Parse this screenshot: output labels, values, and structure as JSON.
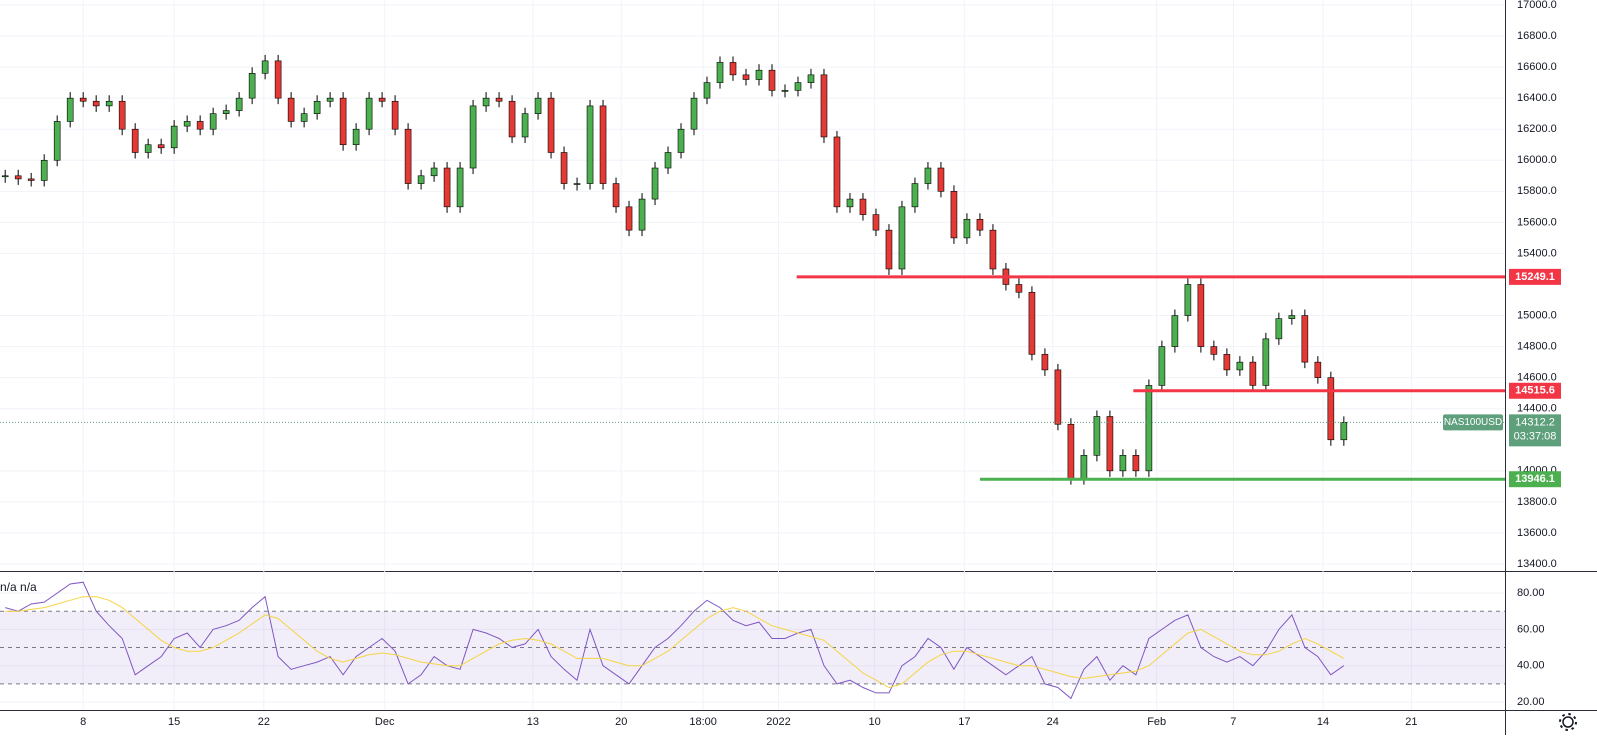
{
  "chart_data": [
    {
      "type": "candlestick",
      "symbol": "NAS100USD",
      "last_price": 14312.2,
      "countdown": "03:37:08",
      "up_color": "#4caf50",
      "down_color": "#e53935",
      "last_color": "#5e9f7c",
      "x": [
        1,
        2,
        3,
        4,
        5,
        6,
        7,
        8,
        9,
        10,
        11,
        12,
        13,
        14,
        15,
        16,
        17,
        18,
        19,
        20,
        21,
        22,
        23,
        24,
        25,
        26,
        27,
        28,
        29,
        30,
        31,
        32,
        33,
        34,
        35,
        36,
        37,
        38,
        39,
        40,
        41,
        42,
        43,
        44,
        45,
        46,
        47,
        48,
        49,
        50,
        51,
        52,
        53,
        54,
        55,
        56,
        57,
        58,
        59,
        60,
        61,
        62,
        63,
        64,
        65,
        66,
        67,
        68,
        69,
        70,
        71,
        72,
        73,
        74,
        75,
        76,
        77,
        78,
        79,
        80,
        81,
        82,
        83,
        84,
        85,
        86,
        87,
        88,
        89,
        90,
        91,
        92,
        93,
        94,
        95,
        96,
        97,
        98,
        99,
        100,
        101,
        102,
        103,
        104
      ],
      "close": [
        15900,
        15880,
        15870,
        16000,
        16250,
        16400,
        16380,
        16350,
        16380,
        16200,
        16050,
        16100,
        16080,
        16220,
        16250,
        16200,
        16300,
        16320,
        16400,
        16560,
        16640,
        16400,
        16250,
        16300,
        16380,
        16400,
        16100,
        16200,
        16400,
        16380,
        16200,
        15850,
        15900,
        15950,
        15700,
        15950,
        16350,
        16400,
        16380,
        16150,
        16300,
        16400,
        16050,
        15850,
        15850,
        16350,
        15850,
        15700,
        15550,
        15750,
        15950,
        16050,
        16200,
        16400,
        16500,
        16630,
        16550,
        16520,
        16580,
        16450,
        16450,
        16500,
        16550,
        16150,
        15700,
        15750,
        15650,
        15550,
        15300,
        15700,
        15850,
        15950,
        15800,
        15500,
        15620,
        15550,
        15300,
        15200,
        15150,
        14750,
        14650,
        14300,
        13950,
        14100,
        14350,
        14000,
        14100,
        14000,
        14550,
        14800,
        15000,
        15200,
        14800,
        14750,
        14650,
        14700,
        14550,
        14850,
        14980,
        15000,
        14700,
        14600,
        14200,
        14312.2
      ],
      "xlim": [
        0.6,
        116.4
      ],
      "xticks": [
        {
          "value": 7,
          "label": "8"
        },
        {
          "value": 14,
          "label": "15"
        },
        {
          "value": 20.9,
          "label": "22"
        },
        {
          "value": 30.2,
          "label": "Dec"
        },
        {
          "value": 41.6,
          "label": "13"
        },
        {
          "value": 48.4,
          "label": "20"
        },
        {
          "value": 54.7,
          "label": "18:00"
        },
        {
          "value": 60.5,
          "label": "2022"
        },
        {
          "value": 67.9,
          "label": "10"
        },
        {
          "value": 74.8,
          "label": "17"
        },
        {
          "value": 81.6,
          "label": "24"
        },
        {
          "value": 89.6,
          "label": "Feb"
        },
        {
          "value": 95.5,
          "label": "7"
        },
        {
          "value": 102.4,
          "label": "14"
        },
        {
          "value": 109.2,
          "label": "21"
        }
      ],
      "ylim": [
        13355,
        17032
      ],
      "yticks": [
        {
          "value": 17000,
          "label": "17000.0"
        },
        {
          "value": 16800,
          "label": "16800.0"
        },
        {
          "value": 16600,
          "label": "16600.0"
        },
        {
          "value": 16400,
          "label": "16400.0"
        },
        {
          "value": 16200,
          "label": "16200.0"
        },
        {
          "value": 16000,
          "label": "16000.0"
        },
        {
          "value": 15800,
          "label": "15800.0"
        },
        {
          "value": 15600,
          "label": "15600.0"
        },
        {
          "value": 15400,
          "label": "15400.0"
        },
        {
          "value": 15000,
          "label": "15000.0"
        },
        {
          "value": 14800,
          "label": "14800.0"
        },
        {
          "value": 14600,
          "label": "14600.0"
        },
        {
          "value": 14400,
          "label": "14400.0"
        },
        {
          "value": 14000,
          "label": "14000.0"
        },
        {
          "value": 13800,
          "label": "13800.0"
        },
        {
          "value": 13600,
          "label": "13600.0"
        },
        {
          "value": 13400,
          "label": "13400.0"
        }
      ],
      "levels": [
        {
          "value": 15249.1,
          "x_start": 61.9,
          "color": "#f23645"
        },
        {
          "value": 14515.6,
          "x_start": 87.8,
          "color": "#f23645"
        },
        {
          "value": 13946.1,
          "x_start": 76.0,
          "color": "#4caf50"
        }
      ]
    },
    {
      "type": "line",
      "legend_text": "n/a n/a",
      "series": [
        {
          "color": "#7e57c2",
          "values": [
            72,
            70,
            74,
            75,
            80,
            85,
            86,
            70,
            62,
            55,
            35,
            40,
            45,
            55,
            58,
            50,
            60,
            62,
            65,
            72,
            78,
            45,
            38,
            40,
            42,
            45,
            35,
            45,
            50,
            55,
            48,
            30,
            35,
            45,
            40,
            38,
            60,
            58,
            55,
            50,
            52,
            60,
            45,
            38,
            32,
            60,
            40,
            35,
            30,
            40,
            50,
            55,
            62,
            70,
            76,
            72,
            65,
            62,
            64,
            55,
            55,
            58,
            60,
            40,
            30,
            32,
            28,
            25,
            25,
            40,
            45,
            55,
            50,
            38,
            50,
            45,
            40,
            35,
            40,
            45,
            30,
            28,
            22,
            38,
            45,
            32,
            40,
            35,
            55,
            60,
            65,
            68,
            50,
            45,
            42,
            45,
            40,
            48,
            60,
            68,
            50,
            45,
            35,
            40
          ]
        },
        {
          "color": "#f5d442",
          "values": [
            70,
            70,
            71,
            72,
            74,
            76,
            78,
            78,
            76,
            72,
            66,
            60,
            54,
            50,
            48,
            48,
            50,
            54,
            58,
            63,
            68,
            66,
            60,
            54,
            48,
            44,
            42,
            44,
            46,
            47,
            46,
            44,
            42,
            41,
            40,
            40,
            44,
            48,
            52,
            54,
            55,
            54,
            52,
            48,
            44,
            44,
            44,
            42,
            40,
            40,
            44,
            48,
            54,
            60,
            66,
            70,
            72,
            70,
            66,
            62,
            60,
            58,
            56,
            54,
            48,
            42,
            36,
            32,
            28,
            30,
            36,
            42,
            46,
            48,
            48,
            46,
            44,
            42,
            40,
            40,
            38,
            36,
            34,
            33,
            34,
            35,
            36,
            37,
            40,
            46,
            52,
            58,
            60,
            56,
            52,
            48,
            46,
            46,
            48,
            52,
            55,
            52,
            48,
            44
          ]
        }
      ],
      "levels": [
        70,
        50,
        30
      ],
      "band_color": "#7e57c2",
      "ylim": [
        15.6,
        91.6
      ],
      "yticks": [
        {
          "value": 80,
          "label": "80.00"
        },
        {
          "value": 60,
          "label": "60.00"
        },
        {
          "value": 40,
          "label": "40.00"
        },
        {
          "value": 20,
          "label": "20.00"
        }
      ]
    }
  ]
}
